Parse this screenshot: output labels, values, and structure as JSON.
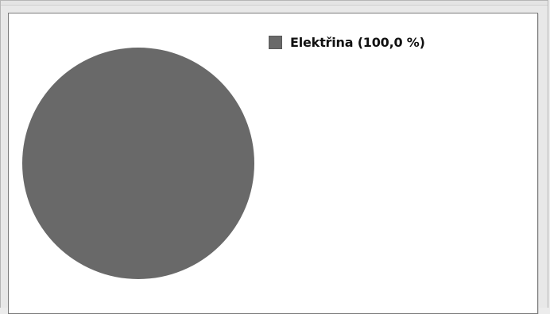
{
  "chart_data": {
    "type": "pie",
    "slices": [
      {
        "label": "Elektřina",
        "value": 100.0,
        "percent_label": "Elektřina (100,0 %)",
        "color": "#696969"
      }
    ],
    "legend_position": "top-right"
  },
  "colors": {
    "background": "#ececec",
    "panel": "#ffffff",
    "panel_border": "#7a7a7a"
  }
}
